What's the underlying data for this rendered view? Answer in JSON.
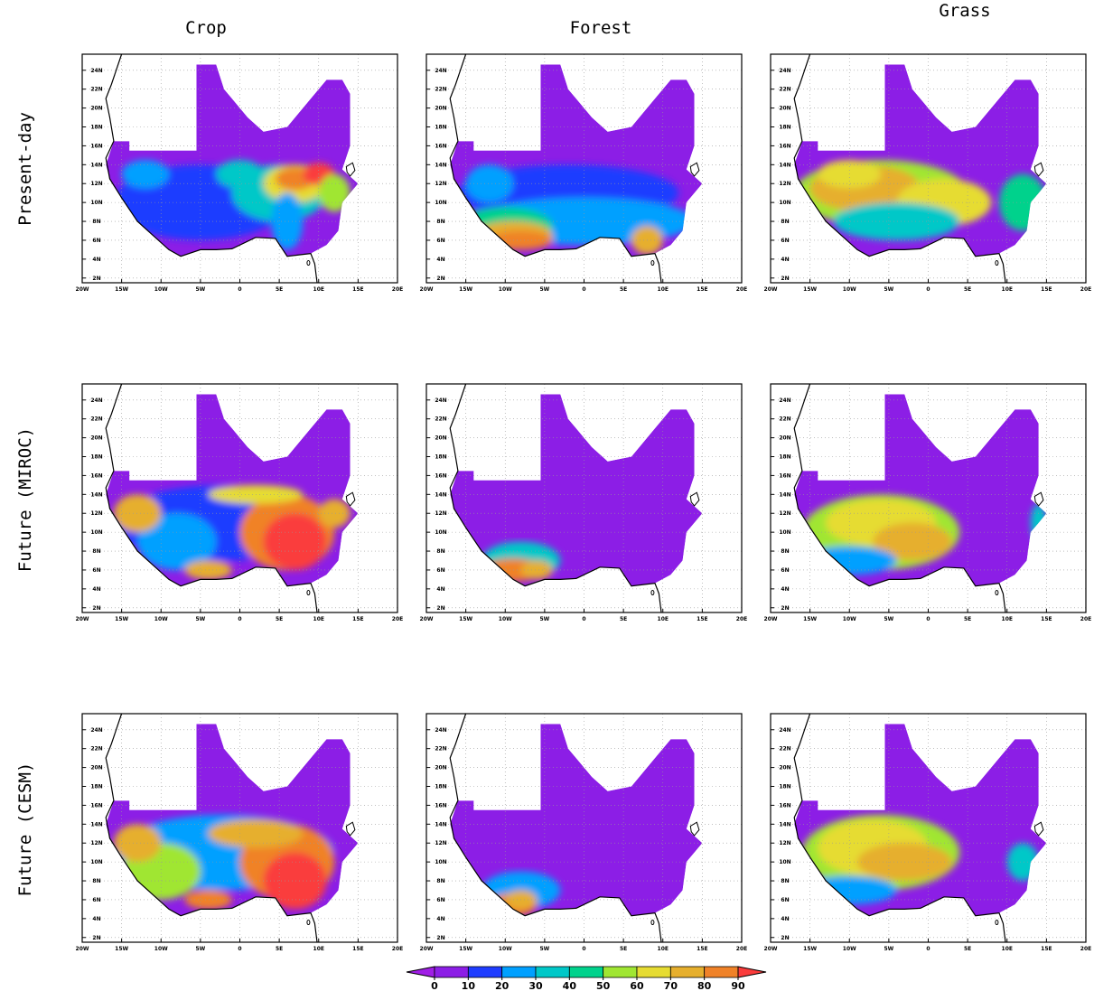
{
  "columns": [
    "Crop",
    "Forest",
    "Grass"
  ],
  "rows": [
    "Present-day",
    "Future (MIROC)",
    "Future (CESM)"
  ],
  "lonlim": [
    -20,
    20
  ],
  "latlim": [
    1.5,
    25.7
  ],
  "lon_ticks": [
    {
      "value": -20,
      "label": "20W"
    },
    {
      "value": -15,
      "label": "15W"
    },
    {
      "value": -10,
      "label": "10W"
    },
    {
      "value": -5,
      "label": "5W"
    },
    0,
    {
      "value": 5,
      "label": "5E"
    },
    {
      "value": 10,
      "label": "10E"
    },
    {
      "value": 15,
      "label": "15E"
    },
    {
      "value": 20,
      "label": "20E"
    }
  ],
  "lat_ticks": [
    {
      "value": 2,
      "label": "2N"
    },
    {
      "value": 4,
      "label": "4N"
    },
    {
      "value": 6,
      "label": "6N"
    },
    {
      "value": 8,
      "label": "8N"
    },
    {
      "value": 10,
      "label": "10N"
    },
    {
      "value": 12,
      "label": "12N"
    },
    {
      "value": 14,
      "label": "14N"
    },
    {
      "value": 16,
      "label": "16N"
    },
    {
      "value": 18,
      "label": "18N"
    },
    {
      "value": 20,
      "label": "20N"
    },
    {
      "value": 22,
      "label": "22N"
    },
    {
      "value": 24,
      "label": "24N"
    }
  ],
  "grid": true,
  "colorbar": {
    "ticks": [
      0,
      10,
      20,
      30,
      40,
      50,
      60,
      70,
      80,
      90
    ],
    "colors": [
      "#a01ee6",
      "#8c1ee6",
      "#1e3cff",
      "#00a0ff",
      "#00c8c8",
      "#00d28c",
      "#a0e632",
      "#e6dc32",
      "#e6af2d",
      "#f08228",
      "#fa3c3c"
    ]
  }
}
